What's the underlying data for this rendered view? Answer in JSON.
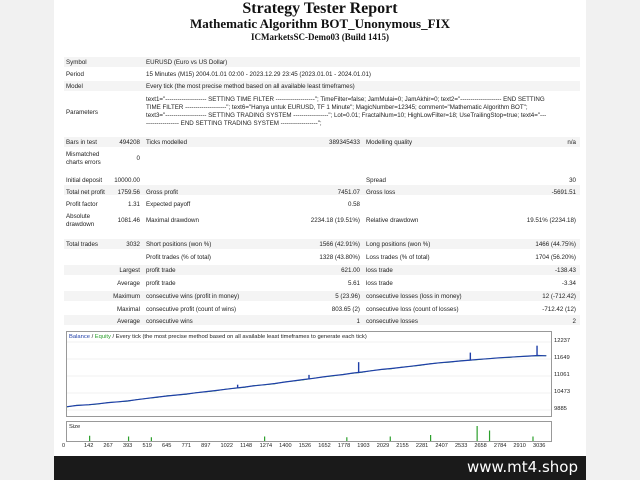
{
  "report": {
    "title": "Strategy Tester Report",
    "ea_name": "Mathematic Algorithm BOT_Unonymous_FIX",
    "server": "ICMarketsSC-Demo03 (Build 1415)"
  },
  "info": {
    "symbol_label": "Symbol",
    "symbol": "EURUSD (Euro vs US Dollar)",
    "period_label": "Period",
    "period": "15 Minutes (M15) 2004.01.01 02:00 - 2023.12.29 23:45 (2023.01.01 - 2024.01.01)",
    "model_label": "Model",
    "model": "Every tick (the most precise method based on all available least timeframes)",
    "params_label": "Parameters",
    "params_l1": "text1=\"-------------------- SETTING TIME FILTER -------------------\"; TimeFilter=false; JamMulai=0; JamAkhir=0; text2=\"-------------------- END SETTING",
    "params_l2": "TIME FILTER --------------------\"; text6=\"Hanya untuk EURUSD, TF 1 Minute\"; MagicNumber=12345; comment=\"Mathematic Algorithm BOT\";",
    "params_l3": "text3=\"-------------------- SETTING TRADING SYSTEM -----------------\"; Lot=0.01; FractalNum=10; HighLowFilter=18; UseTrailingStop=true; text4=\"---",
    "params_l4": "---------------- END SETTING TRADING SYSTEM ------------------\";"
  },
  "stats": {
    "bars_label": "Bars in test",
    "bars": "494208",
    "ticks_label": "Ticks modelled",
    "ticks": "389345433",
    "quality_label": "Modelling quality",
    "quality": "n/a",
    "mismatch_label1": "Mismatched",
    "mismatch_label2": "charts errors",
    "mismatch": "0",
    "deposit_label": "Initial deposit",
    "deposit": "10000.00",
    "spread_label": "Spread",
    "spread": "30",
    "netprofit_label": "Total net profit",
    "netprofit": "1759.56",
    "grossprofit_label": "Gross profit",
    "grossprofit": "7451.07",
    "grossloss_label": "Gross loss",
    "grossloss": "-5691.51",
    "pf_label": "Profit factor",
    "pf": "1.31",
    "payoff_label": "Expected payoff",
    "payoff": "0.58",
    "absdd_label1": "Absolute",
    "absdd_label2": "drawdown",
    "absdd": "1081.46",
    "maxdd_label": "Maximal drawdown",
    "maxdd": "2234.18 (19.51%)",
    "reldd_label": "Relative drawdown",
    "reldd": "19.51% (2234.18)",
    "trades_label": "Total trades",
    "trades": "3032",
    "short_label": "Short positions (won %)",
    "short": "1566 (42.91%)",
    "long_label": "Long positions (won %)",
    "long": "1466 (44.75%)",
    "ptrades_label": "Profit trades (% of total)",
    "ptrades": "1328 (43.80%)",
    "ltrades_label": "Loss trades (% of total)",
    "ltrades": "1704 (56.20%)",
    "largest_label": "Largest",
    "lp_label": "profit trade",
    "lp": "621.00",
    "ll_label": "loss trade",
    "ll": "-138.43",
    "average_label": "Average",
    "ap_label": "profit trade",
    "ap": "5.61",
    "al_label": "loss trade",
    "al": "-3.34",
    "maximum_label": "Maximum",
    "mcw_label": "consecutive wins (profit in money)",
    "mcw": "5 (23.96)",
    "mcl_label": "consecutive losses (loss in money)",
    "mcl": "12 (-712.42)",
    "maximal_label": "Maximal",
    "mcp_label": "consecutive profit (count of wins)",
    "mcp": "803.65 (2)",
    "mcloss_label": "consecutive loss (count of losses)",
    "mcloss": "-712.42 (12)",
    "average2_label": "Average",
    "acw_label": "consecutive wins",
    "acw": "1",
    "acl_label": "consecutive losses",
    "acl": "2"
  },
  "chart_legend": {
    "balance": "Balance",
    "sep1": " / ",
    "equity": "Equity",
    "rest": " / Every tick (the most precise method based on all available least timeframes to generate each tick)"
  },
  "size_label": "Size",
  "colors": {
    "balance": "#1f3fa8",
    "equity": "#2ca02c",
    "size_bar": "#2ca02c"
  },
  "chart_data": {
    "type": "line",
    "title": "",
    "xlabel": "",
    "ylabel": "",
    "x_ticks": [
      "0",
      "142",
      "267",
      "393",
      "519",
      "645",
      "771",
      "897",
      "1022",
      "1148",
      "1274",
      "1400",
      "1526",
      "1652",
      "1778",
      "1903",
      "2029",
      "2155",
      "2281",
      "2407",
      "2533",
      "2658",
      "2784",
      "2910",
      "3036"
    ],
    "y_ticks": [
      "12237",
      "11649",
      "11061",
      "10473",
      "9885"
    ],
    "ylim": [
      9885,
      12237
    ],
    "xlim": [
      0,
      3120
    ],
    "series": [
      {
        "name": "Balance",
        "x": [
          0,
          60,
          142,
          200,
          267,
          330,
          393,
          450,
          519,
          580,
          645,
          700,
          771,
          830,
          897,
          960,
          1022,
          1080,
          1148,
          1200,
          1274,
          1340,
          1400,
          1460,
          1526,
          1590,
          1652,
          1710,
          1778,
          1840,
          1903,
          1960,
          2029,
          2090,
          2155,
          2220,
          2281,
          2340,
          2407,
          2470,
          2533,
          2600,
          2658,
          2720,
          2784,
          2850,
          2910,
          2970,
          3036,
          3090
        ],
        "y": [
          10000,
          10040,
          10070,
          10100,
          10140,
          10170,
          10200,
          10240,
          10290,
          10330,
          10370,
          10400,
          10440,
          10480,
          10520,
          10560,
          10600,
          10640,
          10680,
          10720,
          10760,
          10800,
          10850,
          10890,
          10940,
          10980,
          11030,
          11070,
          11110,
          11160,
          11200,
          11240,
          11290,
          11320,
          11360,
          11400,
          11440,
          11480,
          11520,
          11550,
          11580,
          11610,
          11640,
          11660,
          11690,
          11710,
          11730,
          11750,
          11770,
          11759
        ]
      }
    ],
    "spikes": [
      {
        "x": 1100,
        "y": 10760
      },
      {
        "x": 1560,
        "y": 11100
      },
      {
        "x": 1880,
        "y": 11540
      },
      {
        "x": 2600,
        "y": 11870
      },
      {
        "x": 3030,
        "y": 12110
      }
    ],
    "size_bars": [
      {
        "x": 142,
        "v": 0.35
      },
      {
        "x": 393,
        "v": 0.3
      },
      {
        "x": 540,
        "v": 0.25
      },
      {
        "x": 1270,
        "v": 0.3
      },
      {
        "x": 1800,
        "v": 0.25
      },
      {
        "x": 2080,
        "v": 0.3
      },
      {
        "x": 2340,
        "v": 0.4
      },
      {
        "x": 2640,
        "v": 1.0
      },
      {
        "x": 2720,
        "v": 0.7
      },
      {
        "x": 3000,
        "v": 0.3
      }
    ]
  },
  "footer_text": "www.mt4.shop"
}
